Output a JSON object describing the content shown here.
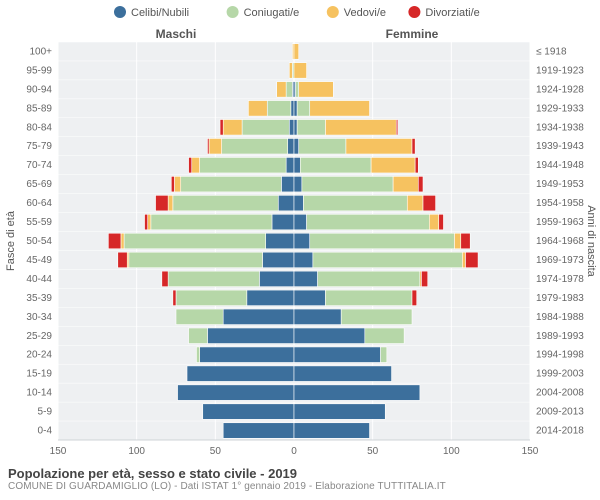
{
  "legend": [
    {
      "label": "Celibi/Nubili",
      "color": "#3c6f9c"
    },
    {
      "label": "Coniugati/e",
      "color": "#b6d7a8"
    },
    {
      "label": "Vedovi/e",
      "color": "#f6c260"
    },
    {
      "label": "Divorziati/e",
      "color": "#d62728"
    }
  ],
  "header_left": "Maschi",
  "header_right": "Femmine",
  "axis_left_title": "Fasce di età",
  "axis_right_title": "Anni di nascita",
  "x_ticks": [
    150,
    100,
    50,
    0,
    50,
    100,
    150
  ],
  "title": "Popolazione per età, sesso e stato civile - 2019",
  "subtitle": "COMUNE DI GUARDAMIGLIO (LO) - Dati ISTAT 1° gennaio 2019 - Elaborazione TUTTITALIA.IT",
  "chart": {
    "background": "#eef0f2",
    "grid_color": "#ffffff",
    "center_line_color": "#d9dde1",
    "tick_font_size": 10,
    "tick_color": "#666666",
    "axis_title_font_size": 11,
    "axis_title_color": "#555555",
    "header_font_size": 12,
    "header_color": "#555555",
    "xlim": 150
  },
  "rows": [
    {
      "age": "0-4",
      "birth": "2014-2018",
      "m": {
        "cel": 45,
        "con": 0,
        "ved": 0,
        "div": 0
      },
      "f": {
        "cel": 48,
        "con": 0,
        "ved": 0,
        "div": 0
      }
    },
    {
      "age": "5-9",
      "birth": "2009-2013",
      "m": {
        "cel": 58,
        "con": 0,
        "ved": 0,
        "div": 0
      },
      "f": {
        "cel": 58,
        "con": 0,
        "ved": 0,
        "div": 0
      }
    },
    {
      "age": "10-14",
      "birth": "2004-2008",
      "m": {
        "cel": 74,
        "con": 0,
        "ved": 0,
        "div": 0
      },
      "f": {
        "cel": 80,
        "con": 0,
        "ved": 0,
        "div": 0
      }
    },
    {
      "age": "15-19",
      "birth": "1999-2003",
      "m": {
        "cel": 68,
        "con": 0,
        "ved": 0,
        "div": 0
      },
      "f": {
        "cel": 62,
        "con": 0,
        "ved": 0,
        "div": 0
      }
    },
    {
      "age": "20-24",
      "birth": "1994-1998",
      "m": {
        "cel": 60,
        "con": 2,
        "ved": 0,
        "div": 0
      },
      "f": {
        "cel": 55,
        "con": 4,
        "ved": 0,
        "div": 0
      }
    },
    {
      "age": "25-29",
      "birth": "1989-1993",
      "m": {
        "cel": 55,
        "con": 12,
        "ved": 0,
        "div": 0
      },
      "f": {
        "cel": 45,
        "con": 25,
        "ved": 0,
        "div": 0
      }
    },
    {
      "age": "30-34",
      "birth": "1984-1988",
      "m": {
        "cel": 45,
        "con": 30,
        "ved": 0,
        "div": 0
      },
      "f": {
        "cel": 30,
        "con": 45,
        "ved": 0,
        "div": 0
      }
    },
    {
      "age": "35-39",
      "birth": "1979-1983",
      "m": {
        "cel": 30,
        "con": 45,
        "ved": 0,
        "div": 2
      },
      "f": {
        "cel": 20,
        "con": 55,
        "ved": 0,
        "div": 3
      }
    },
    {
      "age": "40-44",
      "birth": "1974-1978",
      "m": {
        "cel": 22,
        "con": 58,
        "ved": 0,
        "div": 4
      },
      "f": {
        "cel": 15,
        "con": 65,
        "ved": 1,
        "div": 4
      }
    },
    {
      "age": "45-49",
      "birth": "1969-1973",
      "m": {
        "cel": 20,
        "con": 85,
        "ved": 1,
        "div": 6
      },
      "f": {
        "cel": 12,
        "con": 95,
        "ved": 2,
        "div": 8
      }
    },
    {
      "age": "50-54",
      "birth": "1964-1968",
      "m": {
        "cel": 18,
        "con": 90,
        "ved": 2,
        "div": 8
      },
      "f": {
        "cel": 10,
        "con": 92,
        "ved": 4,
        "div": 6
      }
    },
    {
      "age": "55-59",
      "birth": "1959-1963",
      "m": {
        "cel": 14,
        "con": 77,
        "ved": 2,
        "div": 2
      },
      "f": {
        "cel": 8,
        "con": 78,
        "ved": 6,
        "div": 3
      }
    },
    {
      "age": "60-64",
      "birth": "1954-1958",
      "m": {
        "cel": 10,
        "con": 67,
        "ved": 3,
        "div": 8
      },
      "f": {
        "cel": 6,
        "con": 66,
        "ved": 10,
        "div": 8
      }
    },
    {
      "age": "65-69",
      "birth": "1949-1953",
      "m": {
        "cel": 8,
        "con": 64,
        "ved": 4,
        "div": 2
      },
      "f": {
        "cel": 5,
        "con": 58,
        "ved": 16,
        "div": 3
      }
    },
    {
      "age": "70-74",
      "birth": "1944-1948",
      "m": {
        "cel": 5,
        "con": 55,
        "ved": 5,
        "div": 2
      },
      "f": {
        "cel": 4,
        "con": 45,
        "ved": 28,
        "div": 2
      }
    },
    {
      "age": "75-79",
      "birth": "1939-1943",
      "m": {
        "cel": 4,
        "con": 42,
        "ved": 8,
        "div": 1
      },
      "f": {
        "cel": 3,
        "con": 30,
        "ved": 42,
        "div": 2
      }
    },
    {
      "age": "80-84",
      "birth": "1934-1938",
      "m": {
        "cel": 3,
        "con": 30,
        "ved": 12,
        "div": 2
      },
      "f": {
        "cel": 2,
        "con": 18,
        "ved": 45,
        "div": 1
      }
    },
    {
      "age": "85-89",
      "birth": "1929-1933",
      "m": {
        "cel": 2,
        "con": 15,
        "ved": 12,
        "div": 0
      },
      "f": {
        "cel": 2,
        "con": 8,
        "ved": 38,
        "div": 0
      }
    },
    {
      "age": "90-94",
      "birth": "1924-1928",
      "m": {
        "cel": 1,
        "con": 4,
        "ved": 6,
        "div": 0
      },
      "f": {
        "cel": 1,
        "con": 2,
        "ved": 22,
        "div": 0
      }
    },
    {
      "age": "95-99",
      "birth": "1919-1923",
      "m": {
        "cel": 0,
        "con": 1,
        "ved": 2,
        "div": 0
      },
      "f": {
        "cel": 0,
        "con": 0,
        "ved": 8,
        "div": 0
      }
    },
    {
      "age": "100+",
      "birth": "≤ 1918",
      "m": {
        "cel": 0,
        "con": 0,
        "ved": 1,
        "div": 0
      },
      "f": {
        "cel": 0,
        "con": 0,
        "ved": 3,
        "div": 0
      }
    }
  ]
}
